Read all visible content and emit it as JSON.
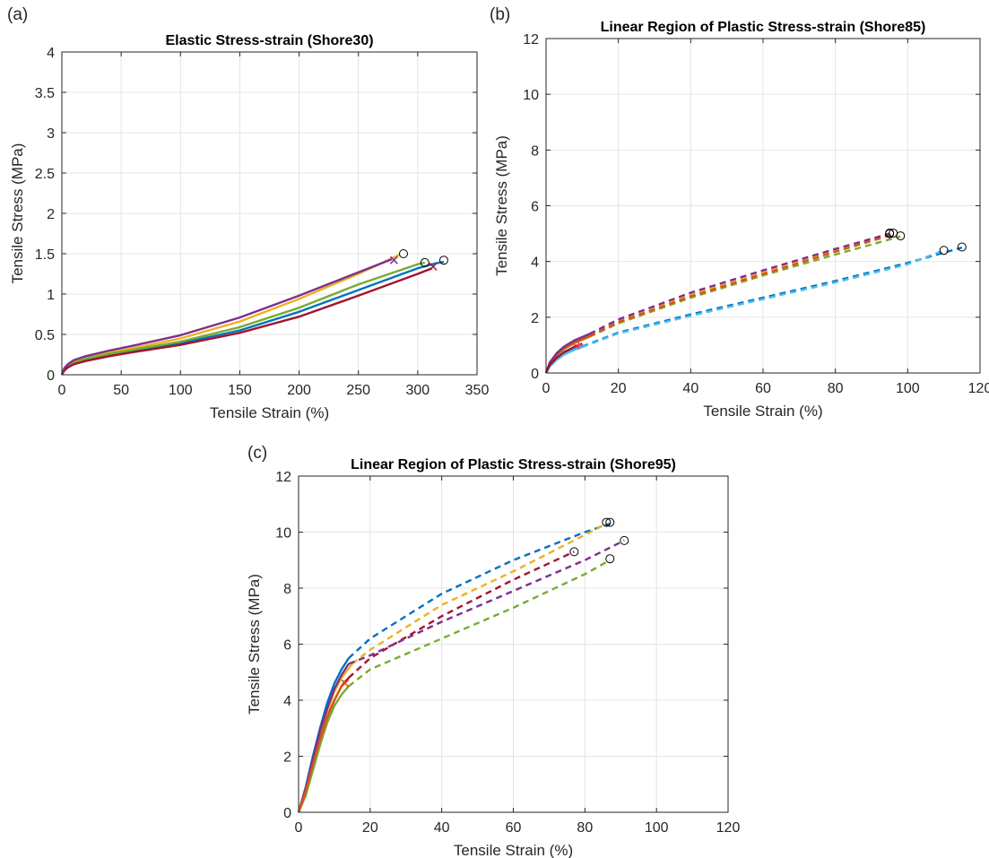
{
  "panels": [
    {
      "label": "(a)"
    },
    {
      "label": "(b)"
    },
    {
      "label": "(c)"
    }
  ],
  "chart_data": [
    {
      "type": "line",
      "title": "Elastic Stress-strain (Shore30)",
      "xlabel": "Tensile Strain (%)",
      "ylabel": "Tensile Stress (MPa)",
      "xlim": [
        0,
        350
      ],
      "ylim": [
        0,
        4
      ],
      "xticks": [
        0,
        50,
        100,
        150,
        200,
        250,
        300,
        350
      ],
      "yticks": [
        0,
        0.5,
        1,
        1.5,
        2,
        2.5,
        3,
        3.5,
        4
      ],
      "grid": true,
      "legend": "none",
      "series": [
        {
          "color": "#0072BD",
          "style": "solid",
          "x": [
            0,
            2,
            5,
            10,
            20,
            40,
            60,
            100,
            150,
            200,
            250,
            300,
            315,
            322
          ],
          "y": [
            0,
            0.06,
            0.1,
            0.14,
            0.19,
            0.25,
            0.3,
            0.39,
            0.55,
            0.78,
            1.05,
            1.32,
            1.38,
            1.4
          ],
          "marker_x": 322,
          "marker_y": 1.42,
          "marker": "circle"
        },
        {
          "color": "#EDB120",
          "style": "solid",
          "x": [
            0,
            2,
            5,
            10,
            20,
            40,
            60,
            100,
            150,
            200,
            250,
            285
          ],
          "y": [
            0,
            0.07,
            0.12,
            0.16,
            0.21,
            0.28,
            0.33,
            0.45,
            0.66,
            0.94,
            1.25,
            1.49
          ],
          "marker_x": 288,
          "marker_y": 1.5,
          "marker": "circle"
        },
        {
          "color": "#77AC30",
          "style": "solid",
          "x": [
            0,
            2,
            5,
            10,
            20,
            40,
            60,
            100,
            150,
            200,
            250,
            300,
            306
          ],
          "y": [
            0,
            0.06,
            0.11,
            0.15,
            0.2,
            0.26,
            0.31,
            0.41,
            0.59,
            0.83,
            1.12,
            1.37,
            1.39
          ],
          "marker_x": 306,
          "marker_y": 1.39,
          "marker": "circle"
        },
        {
          "color": "#A2142F",
          "style": "solid",
          "x": [
            0,
            2,
            5,
            10,
            20,
            40,
            60,
            100,
            150,
            200,
            250,
            300,
            312
          ],
          "y": [
            0,
            0.05,
            0.09,
            0.13,
            0.17,
            0.23,
            0.28,
            0.37,
            0.52,
            0.72,
            0.98,
            1.25,
            1.32
          ],
          "marker_x": 313,
          "marker_y": 1.34,
          "marker": "x"
        },
        {
          "color": "#7E2F8E",
          "style": "solid",
          "x": [
            0,
            2,
            5,
            10,
            20,
            40,
            60,
            100,
            150,
            200,
            250,
            278
          ],
          "y": [
            0,
            0.08,
            0.13,
            0.18,
            0.23,
            0.3,
            0.36,
            0.49,
            0.71,
            0.98,
            1.27,
            1.43
          ],
          "marker_x": 280,
          "marker_y": 1.42,
          "marker": "x"
        }
      ]
    },
    {
      "type": "line",
      "title": "Linear Region of Plastic Stress-strain (Shore85)",
      "xlabel": "Tensile Strain (%)",
      "ylabel": "Tensile Stress (MPa)",
      "xlim": [
        0,
        120
      ],
      "ylim": [
        0,
        12
      ],
      "xticks": [
        0,
        20,
        40,
        60,
        80,
        100,
        120
      ],
      "yticks": [
        0,
        2,
        4,
        6,
        8,
        10,
        12
      ],
      "grid": true,
      "legend": "none",
      "series": [
        {
          "color": "#0072BD",
          "solid_x": [
            0,
            1,
            3,
            5,
            8,
            10
          ],
          "solid_y": [
            0,
            0.25,
            0.5,
            0.68,
            0.86,
            0.95
          ],
          "dash_x": [
            10,
            20,
            40,
            60,
            80,
            100,
            115
          ],
          "dash_y": [
            0.95,
            1.45,
            2.1,
            2.7,
            3.3,
            3.95,
            4.5
          ],
          "marker_x": 115,
          "marker_y": 4.52,
          "marker": "circle"
        },
        {
          "color": "#4DBEEE",
          "solid_x": [
            0,
            1,
            3,
            5,
            8,
            10
          ],
          "solid_y": [
            0,
            0.23,
            0.48,
            0.66,
            0.84,
            0.93
          ],
          "dash_x": [
            10,
            20,
            40,
            60,
            80,
            100,
            110
          ],
          "dash_y": [
            0.93,
            1.42,
            2.05,
            2.65,
            3.25,
            3.9,
            4.4
          ],
          "marker_x": 110,
          "marker_y": 4.4,
          "marker": "circle"
        },
        {
          "color": "#EDB120",
          "solid_x": [
            0,
            1,
            3,
            5,
            8,
            12
          ],
          "solid_y": [
            0,
            0.35,
            0.68,
            0.9,
            1.12,
            1.35
          ],
          "dash_x": [
            12,
            20,
            40,
            60,
            80,
            96
          ],
          "dash_y": [
            1.35,
            1.85,
            2.8,
            3.6,
            4.4,
            5.0
          ],
          "marker_x": 96,
          "marker_y": 5.02,
          "marker": "circle"
        },
        {
          "color": "#77AC30",
          "solid_x": [
            0,
            1,
            3,
            5,
            8,
            12
          ],
          "solid_y": [
            0,
            0.33,
            0.65,
            0.86,
            1.08,
            1.3
          ],
          "dash_x": [
            12,
            20,
            40,
            60,
            80,
            98
          ],
          "dash_y": [
            1.3,
            1.78,
            2.7,
            3.5,
            4.25,
            4.9
          ],
          "marker_x": 98,
          "marker_y": 4.92,
          "marker": "circle"
        },
        {
          "color": "#D95319",
          "solid_x": [
            0,
            1,
            3,
            5,
            8,
            12
          ],
          "solid_y": [
            0,
            0.34,
            0.66,
            0.88,
            1.1,
            1.32
          ],
          "dash_x": [
            12,
            20,
            40,
            60,
            80,
            96
          ],
          "dash_y": [
            1.32,
            1.82,
            2.75,
            3.55,
            4.35,
            4.97
          ],
          "marker_x": 95,
          "marker_y": 5.0,
          "marker": "circle"
        },
        {
          "color": "#7E2F8E",
          "solid_x": [
            0,
            1,
            3,
            5,
            8,
            12
          ],
          "solid_y": [
            0,
            0.37,
            0.72,
            0.95,
            1.18,
            1.4
          ],
          "dash_x": [
            12,
            20,
            40,
            60,
            80,
            95
          ],
          "dash_y": [
            1.4,
            1.92,
            2.88,
            3.68,
            4.45,
            5.0
          ],
          "marker_x": 95,
          "marker_y": 5.02,
          "marker": "circle"
        },
        {
          "color": "#A2142F",
          "solid_x": [
            0,
            1,
            3,
            5,
            8,
            10
          ],
          "solid_y": [
            0,
            0.28,
            0.55,
            0.75,
            0.95,
            1.05
          ],
          "dash_x": [],
          "dash_y": [],
          "marker_x": 9,
          "marker_y": 1.0,
          "marker": "plus"
        }
      ]
    },
    {
      "type": "line",
      "title": "Linear Region of Plastic Stress-strain (Shore95)",
      "xlabel": "Tensile Strain (%)",
      "ylabel": "Tensile Stress (MPa)",
      "xlim": [
        0,
        120
      ],
      "ylim": [
        0,
        12
      ],
      "xticks": [
        0,
        20,
        40,
        60,
        80,
        100,
        120
      ],
      "yticks": [
        0,
        2,
        4,
        6,
        8,
        10,
        12
      ],
      "grid": true,
      "legend": "none",
      "series": [
        {
          "color": "#0072BD",
          "solid_x": [
            0,
            2,
            4,
            6,
            8,
            10,
            12,
            14
          ],
          "solid_y": [
            0,
            0.9,
            2.0,
            3.0,
            3.9,
            4.6,
            5.1,
            5.5
          ],
          "dash_x": [
            14,
            20,
            40,
            60,
            80,
            87
          ],
          "dash_y": [
            5.5,
            6.2,
            7.8,
            9.0,
            10.0,
            10.3
          ],
          "marker_x": 87,
          "marker_y": 10.35,
          "marker": "circle"
        },
        {
          "color": "#EDB120",
          "solid_x": [
            0,
            2,
            4,
            6,
            8,
            10,
            12,
            15
          ],
          "solid_y": [
            0,
            0.8,
            1.8,
            2.8,
            3.6,
            4.3,
            4.8,
            5.3
          ],
          "dash_x": [
            15,
            20,
            40,
            60,
            80,
            86
          ],
          "dash_y": [
            5.3,
            5.8,
            7.4,
            8.6,
            9.9,
            10.3
          ],
          "marker_x": 86,
          "marker_y": 10.35,
          "marker": "circle"
        },
        {
          "color": "#A2142F",
          "solid_x": [
            0,
            2,
            4,
            6,
            8,
            10,
            12,
            14
          ],
          "solid_y": [
            0,
            0.7,
            1.7,
            2.6,
            3.4,
            4.0,
            4.5,
            4.8
          ],
          "dash_x": [
            14,
            20,
            40,
            60,
            77
          ],
          "dash_y": [
            4.8,
            5.5,
            7.0,
            8.3,
            9.3
          ],
          "marker_x": 77,
          "marker_y": 9.3,
          "marker": "circle"
        },
        {
          "color": "#7E2F8E",
          "solid_x": [
            0,
            2,
            4,
            6,
            8,
            10,
            12,
            14
          ],
          "solid_y": [
            0,
            0.85,
            1.9,
            2.9,
            3.7,
            4.4,
            4.9,
            5.3
          ],
          "dash_x": [
            14,
            20,
            40,
            60,
            80,
            91
          ],
          "dash_y": [
            5.3,
            5.6,
            6.8,
            7.9,
            9.0,
            9.7
          ],
          "marker_x": 91,
          "marker_y": 9.7,
          "marker": "circle"
        },
        {
          "color": "#77AC30",
          "solid_x": [
            0,
            2,
            4,
            6,
            8,
            10,
            12,
            14
          ],
          "solid_y": [
            0,
            0.6,
            1.5,
            2.4,
            3.2,
            3.8,
            4.2,
            4.5
          ],
          "dash_x": [
            14,
            20,
            40,
            60,
            80,
            87
          ],
          "dash_y": [
            4.5,
            5.1,
            6.2,
            7.3,
            8.5,
            9.0
          ],
          "marker_x": 87,
          "marker_y": 9.05,
          "marker": "circle"
        },
        {
          "color": "#D95319",
          "solid_x": [
            0,
            2,
            4,
            6,
            8,
            10,
            12,
            13
          ],
          "solid_y": [
            0,
            0.75,
            1.7,
            2.6,
            3.4,
            4.0,
            4.5,
            4.7
          ],
          "dash_x": [],
          "dash_y": [],
          "marker_x": 13,
          "marker_y": 4.6,
          "marker": "x"
        }
      ]
    }
  ]
}
